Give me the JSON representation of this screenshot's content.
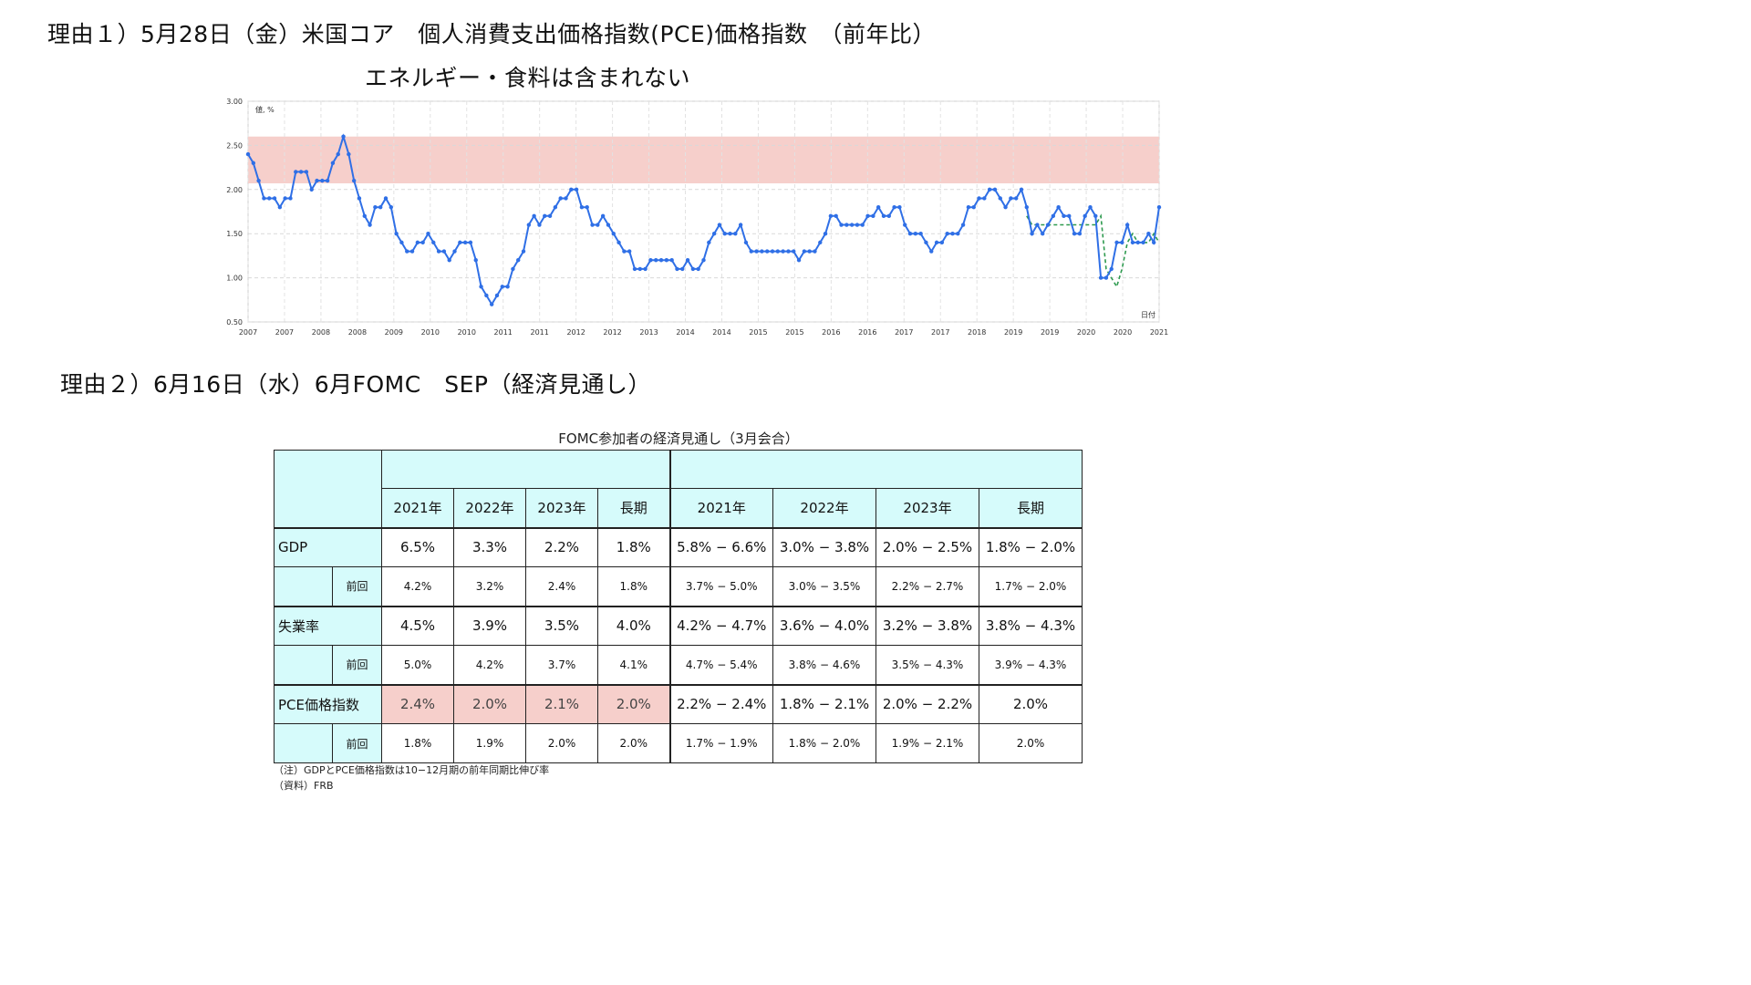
{
  "reason1": {
    "line1": "理由１）5月28日（金）米国コア　個人消費支出価格指数(PCE)価格指数　（前年比）",
    "line2": "エネルギー・食料は含まれない"
  },
  "reason2": {
    "line1": "理由２）6月16日（水）6月FOMC　SEP（経済見通し）"
  },
  "chart_data": {
    "type": "line",
    "ylabel": "値, %",
    "xlabel": "日付",
    "ylim": [
      0.5,
      3.0
    ],
    "y_ticks": [
      "3.00",
      "2.50",
      "2.00",
      "1.50",
      "1.00",
      "0.50"
    ],
    "x_ticks": [
      "2007",
      "2007",
      "2008",
      "2008",
      "2009",
      "2010",
      "2010",
      "2011",
      "2011",
      "2012",
      "2012",
      "2013",
      "2014",
      "2014",
      "2015",
      "2015",
      "2016",
      "2016",
      "2017",
      "2017",
      "2018",
      "2019",
      "2019",
      "2020",
      "2020",
      "2021"
    ],
    "band": {
      "from": 2.07,
      "to": 2.6,
      "color": "#f6cfcb"
    },
    "series": [
      {
        "color": "#2f6fe6",
        "values": [
          2.4,
          2.3,
          2.1,
          1.9,
          1.9,
          1.9,
          1.8,
          1.9,
          1.9,
          2.2,
          2.2,
          2.2,
          2.0,
          2.1,
          2.1,
          2.1,
          2.3,
          2.4,
          2.6,
          2.4,
          2.1,
          1.9,
          1.7,
          1.6,
          1.8,
          1.8,
          1.9,
          1.8,
          1.5,
          1.4,
          1.3,
          1.3,
          1.4,
          1.4,
          1.5,
          1.4,
          1.3,
          1.3,
          1.2,
          1.3,
          1.4,
          1.4,
          1.4,
          1.2,
          0.9,
          0.8,
          0.7,
          0.8,
          0.9,
          0.9,
          1.1,
          1.2,
          1.3,
          1.6,
          1.7,
          1.6,
          1.7,
          1.7,
          1.8,
          1.9,
          1.9,
          2.0,
          2.0,
          1.8,
          1.8,
          1.6,
          1.6,
          1.7,
          1.6,
          1.5,
          1.4,
          1.3,
          1.3,
          1.1,
          1.1,
          1.1,
          1.2,
          1.2,
          1.2,
          1.2,
          1.2,
          1.1,
          1.1,
          1.2,
          1.1,
          1.1,
          1.2,
          1.4,
          1.5,
          1.6,
          1.5,
          1.5,
          1.5,
          1.6,
          1.4,
          1.3,
          1.3,
          1.3,
          1.3,
          1.3,
          1.3,
          1.3,
          1.3,
          1.3,
          1.2,
          1.3,
          1.3,
          1.3,
          1.4,
          1.5,
          1.7,
          1.7,
          1.6,
          1.6,
          1.6,
          1.6,
          1.6,
          1.7,
          1.7,
          1.8,
          1.7,
          1.7,
          1.8,
          1.8,
          1.6,
          1.5,
          1.5,
          1.5,
          1.4,
          1.3,
          1.4,
          1.4,
          1.5,
          1.5,
          1.5,
          1.6,
          1.8,
          1.8,
          1.9,
          1.9,
          2.0,
          2.0,
          1.9,
          1.8,
          1.9,
          1.9,
          2.0,
          1.8,
          1.5,
          1.6,
          1.5,
          1.6,
          1.7,
          1.8,
          1.7,
          1.7,
          1.5,
          1.5,
          1.7,
          1.8,
          1.7,
          1.0,
          1.0,
          1.1,
          1.4,
          1.4,
          1.6,
          1.4,
          1.4,
          1.4,
          1.5,
          1.4,
          1.8
        ]
      },
      {
        "color": "#2e9a4f",
        "style": "dashed",
        "values": [
          1.7,
          1.6,
          1.6,
          1.6,
          1.6,
          1.6,
          1.6,
          1.6,
          1.6,
          1.6,
          1.6,
          1.6,
          1.6,
          1.6,
          1.7,
          1.1,
          1.0,
          0.9,
          1.1,
          1.4,
          1.5,
          1.4,
          1.4,
          1.4,
          1.5,
          1.4
        ]
      }
    ]
  },
  "table": {
    "title": "FOMC参加者の経済見通し（3月会合）",
    "years": [
      "2021年",
      "2022年",
      "2023年",
      "長期",
      "2021年",
      "2022年",
      "2023年",
      "長期"
    ],
    "rows": [
      {
        "label": "GDP",
        "values": [
          "6.5%",
          "3.3%",
          "2.2%",
          "1.8%",
          "5.8% − 6.6%",
          "3.0% − 3.8%",
          "2.0% − 2.5%",
          "1.8% − 2.0%"
        ],
        "prev_label": "前回",
        "prev": [
          "4.2%",
          "3.2%",
          "2.4%",
          "1.8%",
          "3.7% − 5.0%",
          "3.0% − 3.5%",
          "2.2% − 2.7%",
          "1.7% − 2.0%"
        ]
      },
      {
        "label": "失業率",
        "values": [
          "4.5%",
          "3.9%",
          "3.5%",
          "4.0%",
          "4.2% − 4.7%",
          "3.6% − 4.0%",
          "3.2% − 3.8%",
          "3.8% − 4.3%"
        ],
        "prev_label": "前回",
        "prev": [
          "5.0%",
          "4.2%",
          "3.7%",
          "4.1%",
          "4.7% − 5.4%",
          "3.8% − 4.6%",
          "3.5% − 4.3%",
          "3.9% − 4.3%"
        ]
      },
      {
        "label": "PCE価格指数",
        "values": [
          "2.4%",
          "2.0%",
          "2.1%",
          "2.0%",
          "2.2% − 2.4%",
          "1.8% − 2.1%",
          "2.0% − 2.2%",
          "2.0%"
        ],
        "prev_label": "前回",
        "prev": [
          "1.8%",
          "1.9%",
          "2.0%",
          "2.0%",
          "1.7% − 1.9%",
          "1.8% − 2.0%",
          "1.9% − 2.1%",
          "2.0%"
        ]
      }
    ],
    "highlight_color": "#f6cfcb",
    "header_color": "#d6fbfb",
    "note": "（注）GDPとPCE価格指数は10−12月期の前年同期比伸び率",
    "source": "（資料）FRB"
  }
}
